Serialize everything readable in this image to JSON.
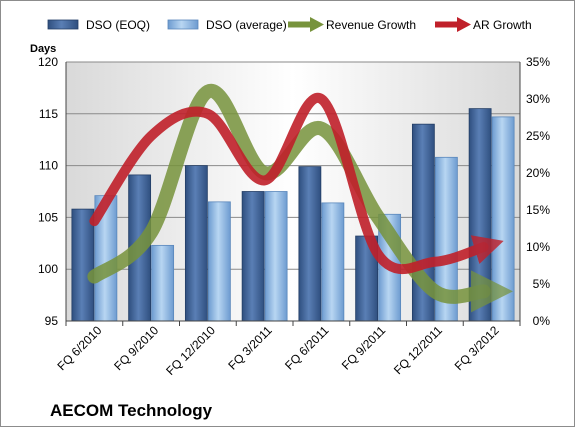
{
  "chart_data": {
    "type": "bar",
    "title": "",
    "company": "AECOM Technology",
    "ylabel": "Days",
    "xlabel": "",
    "categories": [
      "FQ 6/2010",
      "FQ 9/2010",
      "FQ 12/2010",
      "FQ 3/2011",
      "FQ 6/2011",
      "FQ 9/2011",
      "FQ 12/2011",
      "FQ 3/2012"
    ],
    "ylim": [
      95,
      120
    ],
    "y_ticks": [
      95,
      100,
      105,
      110,
      115,
      120
    ],
    "y2lim": [
      0,
      35
    ],
    "y2_ticks": [
      "0%",
      "5%",
      "10%",
      "15%",
      "20%",
      "25%",
      "30%",
      "35%"
    ],
    "grid": true,
    "legend_position": "top",
    "series": [
      {
        "name": "DSO (EOQ)",
        "type": "bar",
        "axis": "left",
        "color": "#4f6f9e",
        "values": [
          105.8,
          109.1,
          110.0,
          107.5,
          109.9,
          103.2,
          114.0,
          115.5
        ]
      },
      {
        "name": "DSO (average)",
        "type": "bar",
        "axis": "left",
        "color": "#9dc3e6",
        "values": [
          107.1,
          102.3,
          106.5,
          107.5,
          106.4,
          105.3,
          110.8,
          114.7
        ]
      },
      {
        "name": "Revenue Growth",
        "type": "line",
        "axis": "right",
        "color": "#77933c",
        "values": [
          6,
          12,
          31,
          20,
          26,
          14,
          4,
          4
        ]
      },
      {
        "name": "AR Growth",
        "type": "line",
        "axis": "right",
        "color": "#c0202a",
        "values": [
          13.5,
          25,
          28,
          19,
          30,
          9,
          8,
          10
        ]
      }
    ]
  }
}
